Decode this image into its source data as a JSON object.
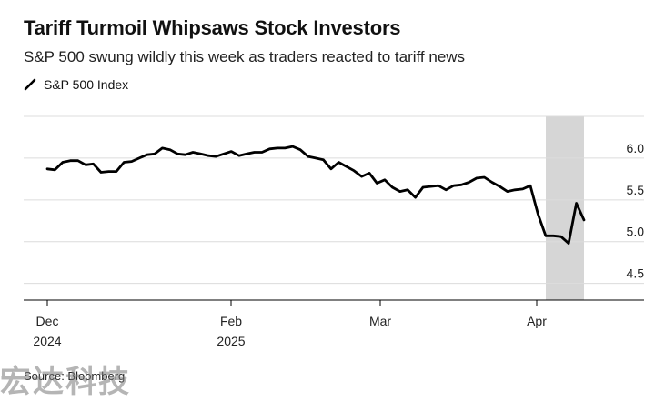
{
  "chart_data": {
    "type": "line",
    "title": "Tariff Turmoil Whipsaws Stock Investors",
    "subtitle": "S&P 500 swung wildly this week as traders reacted to tariff news",
    "legend": [
      "S&P 500 Index"
    ],
    "source": "Source: Bloomberg",
    "ylim": [
      4.3,
      6.5
    ],
    "yticks": [
      "4.5",
      "5.0",
      "5.5",
      "6.0"
    ],
    "xtick_labels": [
      {
        "line1": "Dec",
        "line2": "2024"
      },
      {
        "line1": "Feb",
        "line2": "2025"
      },
      {
        "line1": "Mar",
        "line2": ""
      },
      {
        "line1": "Apr",
        "line2": ""
      }
    ],
    "highlight": {
      "label": "tariff week shading"
    },
    "series": [
      {
        "name": "S&P 500 Index",
        "values": [
          5.87,
          5.86,
          5.95,
          5.97,
          5.97,
          5.92,
          5.93,
          5.83,
          5.84,
          5.84,
          5.95,
          5.96,
          6.0,
          6.04,
          6.05,
          6.12,
          6.1,
          6.05,
          6.04,
          6.07,
          6.05,
          6.03,
          6.02,
          6.05,
          6.08,
          6.03,
          6.05,
          6.07,
          6.07,
          6.11,
          6.12,
          6.12,
          6.14,
          6.1,
          6.02,
          6.0,
          5.98,
          5.87,
          5.95,
          5.9,
          5.85,
          5.78,
          5.82,
          5.7,
          5.74,
          5.65,
          5.6,
          5.62,
          5.53,
          5.65,
          5.66,
          5.67,
          5.62,
          5.67,
          5.68,
          5.71,
          5.76,
          5.77,
          5.71,
          5.66,
          5.6,
          5.62,
          5.63,
          5.67,
          5.33,
          5.07,
          5.07,
          5.06,
          4.98,
          5.46,
          5.26
        ]
      }
    ]
  },
  "colors": {
    "line": "#000000",
    "highlight": "#d6d6d6",
    "grid": "#dcdcdc",
    "axis": "#000000"
  },
  "watermark": "宏达科技"
}
